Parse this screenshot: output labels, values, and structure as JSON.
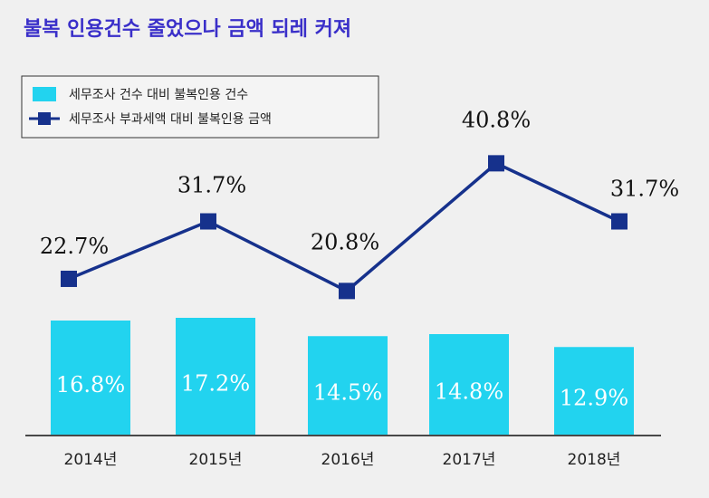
{
  "title": "불복 인용건수 줄었으나 금액 되레 커져",
  "chart_data": {
    "type": "bar+line",
    "categories": [
      "2014년",
      "2015년",
      "2016년",
      "2017년",
      "2018년"
    ],
    "series": [
      {
        "name": "세무조사 건수 대비 불복인용 건수",
        "type": "bar",
        "color": "#22d3ef",
        "values": [
          16.8,
          17.2,
          14.5,
          14.8,
          12.9
        ],
        "labels": [
          "16.8%",
          "17.2%",
          "14.5%",
          "14.8%",
          "12.9%"
        ]
      },
      {
        "name": "세무조사 부과세액 대비 불복인용 금액",
        "type": "line",
        "color": "#16318c",
        "values": [
          22.7,
          31.7,
          20.8,
          40.8,
          31.7
        ],
        "labels": [
          "22.7%",
          "31.7%",
          "20.8%",
          "40.8%",
          "31.7%"
        ]
      }
    ],
    "legend_position": "top-left"
  }
}
